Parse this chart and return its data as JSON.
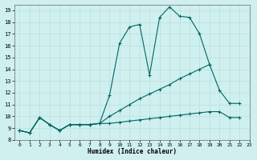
{
  "xlabel": "Humidex (Indice chaleur)",
  "ylabel": "",
  "xlim": [
    -0.5,
    22.5
  ],
  "ylim": [
    8,
    19.5
  ],
  "yticks": [
    8,
    9,
    10,
    11,
    12,
    13,
    14,
    15,
    16,
    17,
    18,
    19
  ],
  "xticks": [
    0,
    1,
    2,
    3,
    4,
    5,
    6,
    7,
    8,
    9,
    10,
    11,
    12,
    13,
    14,
    15,
    16,
    17,
    18,
    19,
    20,
    21,
    22,
    23
  ],
  "bg_color": "#cff0ee",
  "grid_color": "#b8e0dd",
  "line_color": "#006666",
  "lines": [
    {
      "x": [
        0,
        1,
        2,
        3,
        4,
        5,
        6,
        7,
        8,
        9,
        10,
        11,
        12,
        13,
        14,
        15,
        16,
        17,
        18,
        19,
        20,
        21,
        22
      ],
      "y": [
        8.8,
        8.6,
        9.9,
        9.3,
        8.8,
        9.3,
        9.3,
        9.3,
        9.4,
        9.4,
        9.5,
        9.6,
        9.7,
        9.8,
        9.9,
        10.0,
        10.1,
        10.2,
        10.3,
        10.4,
        10.4,
        9.9,
        9.9
      ]
    },
    {
      "x": [
        0,
        1,
        2,
        3,
        4,
        5,
        6,
        7,
        8,
        9,
        10,
        11,
        12,
        13,
        14,
        15,
        16,
        17,
        18,
        19,
        20,
        21,
        22
      ],
      "y": [
        8.8,
        8.6,
        9.9,
        9.3,
        8.8,
        9.3,
        9.3,
        9.3,
        9.4,
        10.0,
        10.5,
        11.0,
        11.5,
        11.9,
        12.3,
        12.7,
        13.2,
        13.6,
        14.0,
        14.4,
        12.2,
        11.1,
        11.1
      ]
    },
    {
      "x": [
        0,
        1,
        2,
        3,
        4,
        5,
        6,
        7,
        8,
        9,
        10,
        11,
        12,
        13,
        14,
        15,
        16,
        17,
        18,
        19
      ],
      "y": [
        8.8,
        8.6,
        9.9,
        9.3,
        8.8,
        9.3,
        9.3,
        9.3,
        9.4,
        11.8,
        16.2,
        17.6,
        17.8,
        13.5,
        18.4,
        19.3,
        18.5,
        18.4,
        17.0,
        14.4
      ]
    }
  ]
}
